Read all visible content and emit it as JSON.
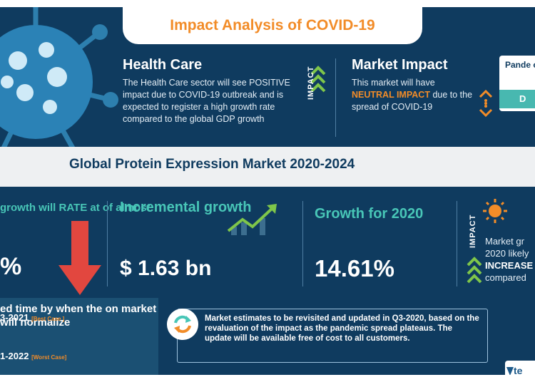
{
  "title": "Impact Analysis of COVID-19",
  "health_care": {
    "title": "Health Care",
    "body": "The Health Care sector will see POSITIVE impact due to COVID-19 outbreak and is expected to register a high growth rate compared to the global GDP growth"
  },
  "impact_label": "IMPACT",
  "market_impact": {
    "title": "Market Impact",
    "body_before": "This market will have",
    "highlight": "NEUTRAL IMPACT",
    "body_after": "due to the spread of COVID-19"
  },
  "pandemic": {
    "title": "Pande on",
    "badge": "D"
  },
  "band_title": "Global Protein Expression Market 2020-2024",
  "growth": {
    "text": "growth will RATE at of almost",
    "pct": "%"
  },
  "incremental": {
    "title": "Incremental growth",
    "value": "$ 1.63 bn"
  },
  "growth_2020": {
    "title": "Growth for 2020",
    "value": "14.61%"
  },
  "market_growth": {
    "line1": "Market gr",
    "line2": "2020 likely",
    "line3": "INCREASE",
    "line4": "compared"
  },
  "normalize": {
    "text": "ed time by when the on market will normalize",
    "row1": "3-2021",
    "row1_tag": "[Best Case ]",
    "row2": "1-2022",
    "row2_tag": "[Worst Case]"
  },
  "note": "Market estimates to be revisited and updated in Q3-2020, based on the revaluation of the impact as the pandemic spread plateaus. The update will be available free of cost to all customers.",
  "logo_text": "te",
  "colors": {
    "navy": "#0f3b5f",
    "orange": "#f28c28",
    "teal": "#48c6b7",
    "red": "#e2473f",
    "green": "#7fc64a"
  }
}
